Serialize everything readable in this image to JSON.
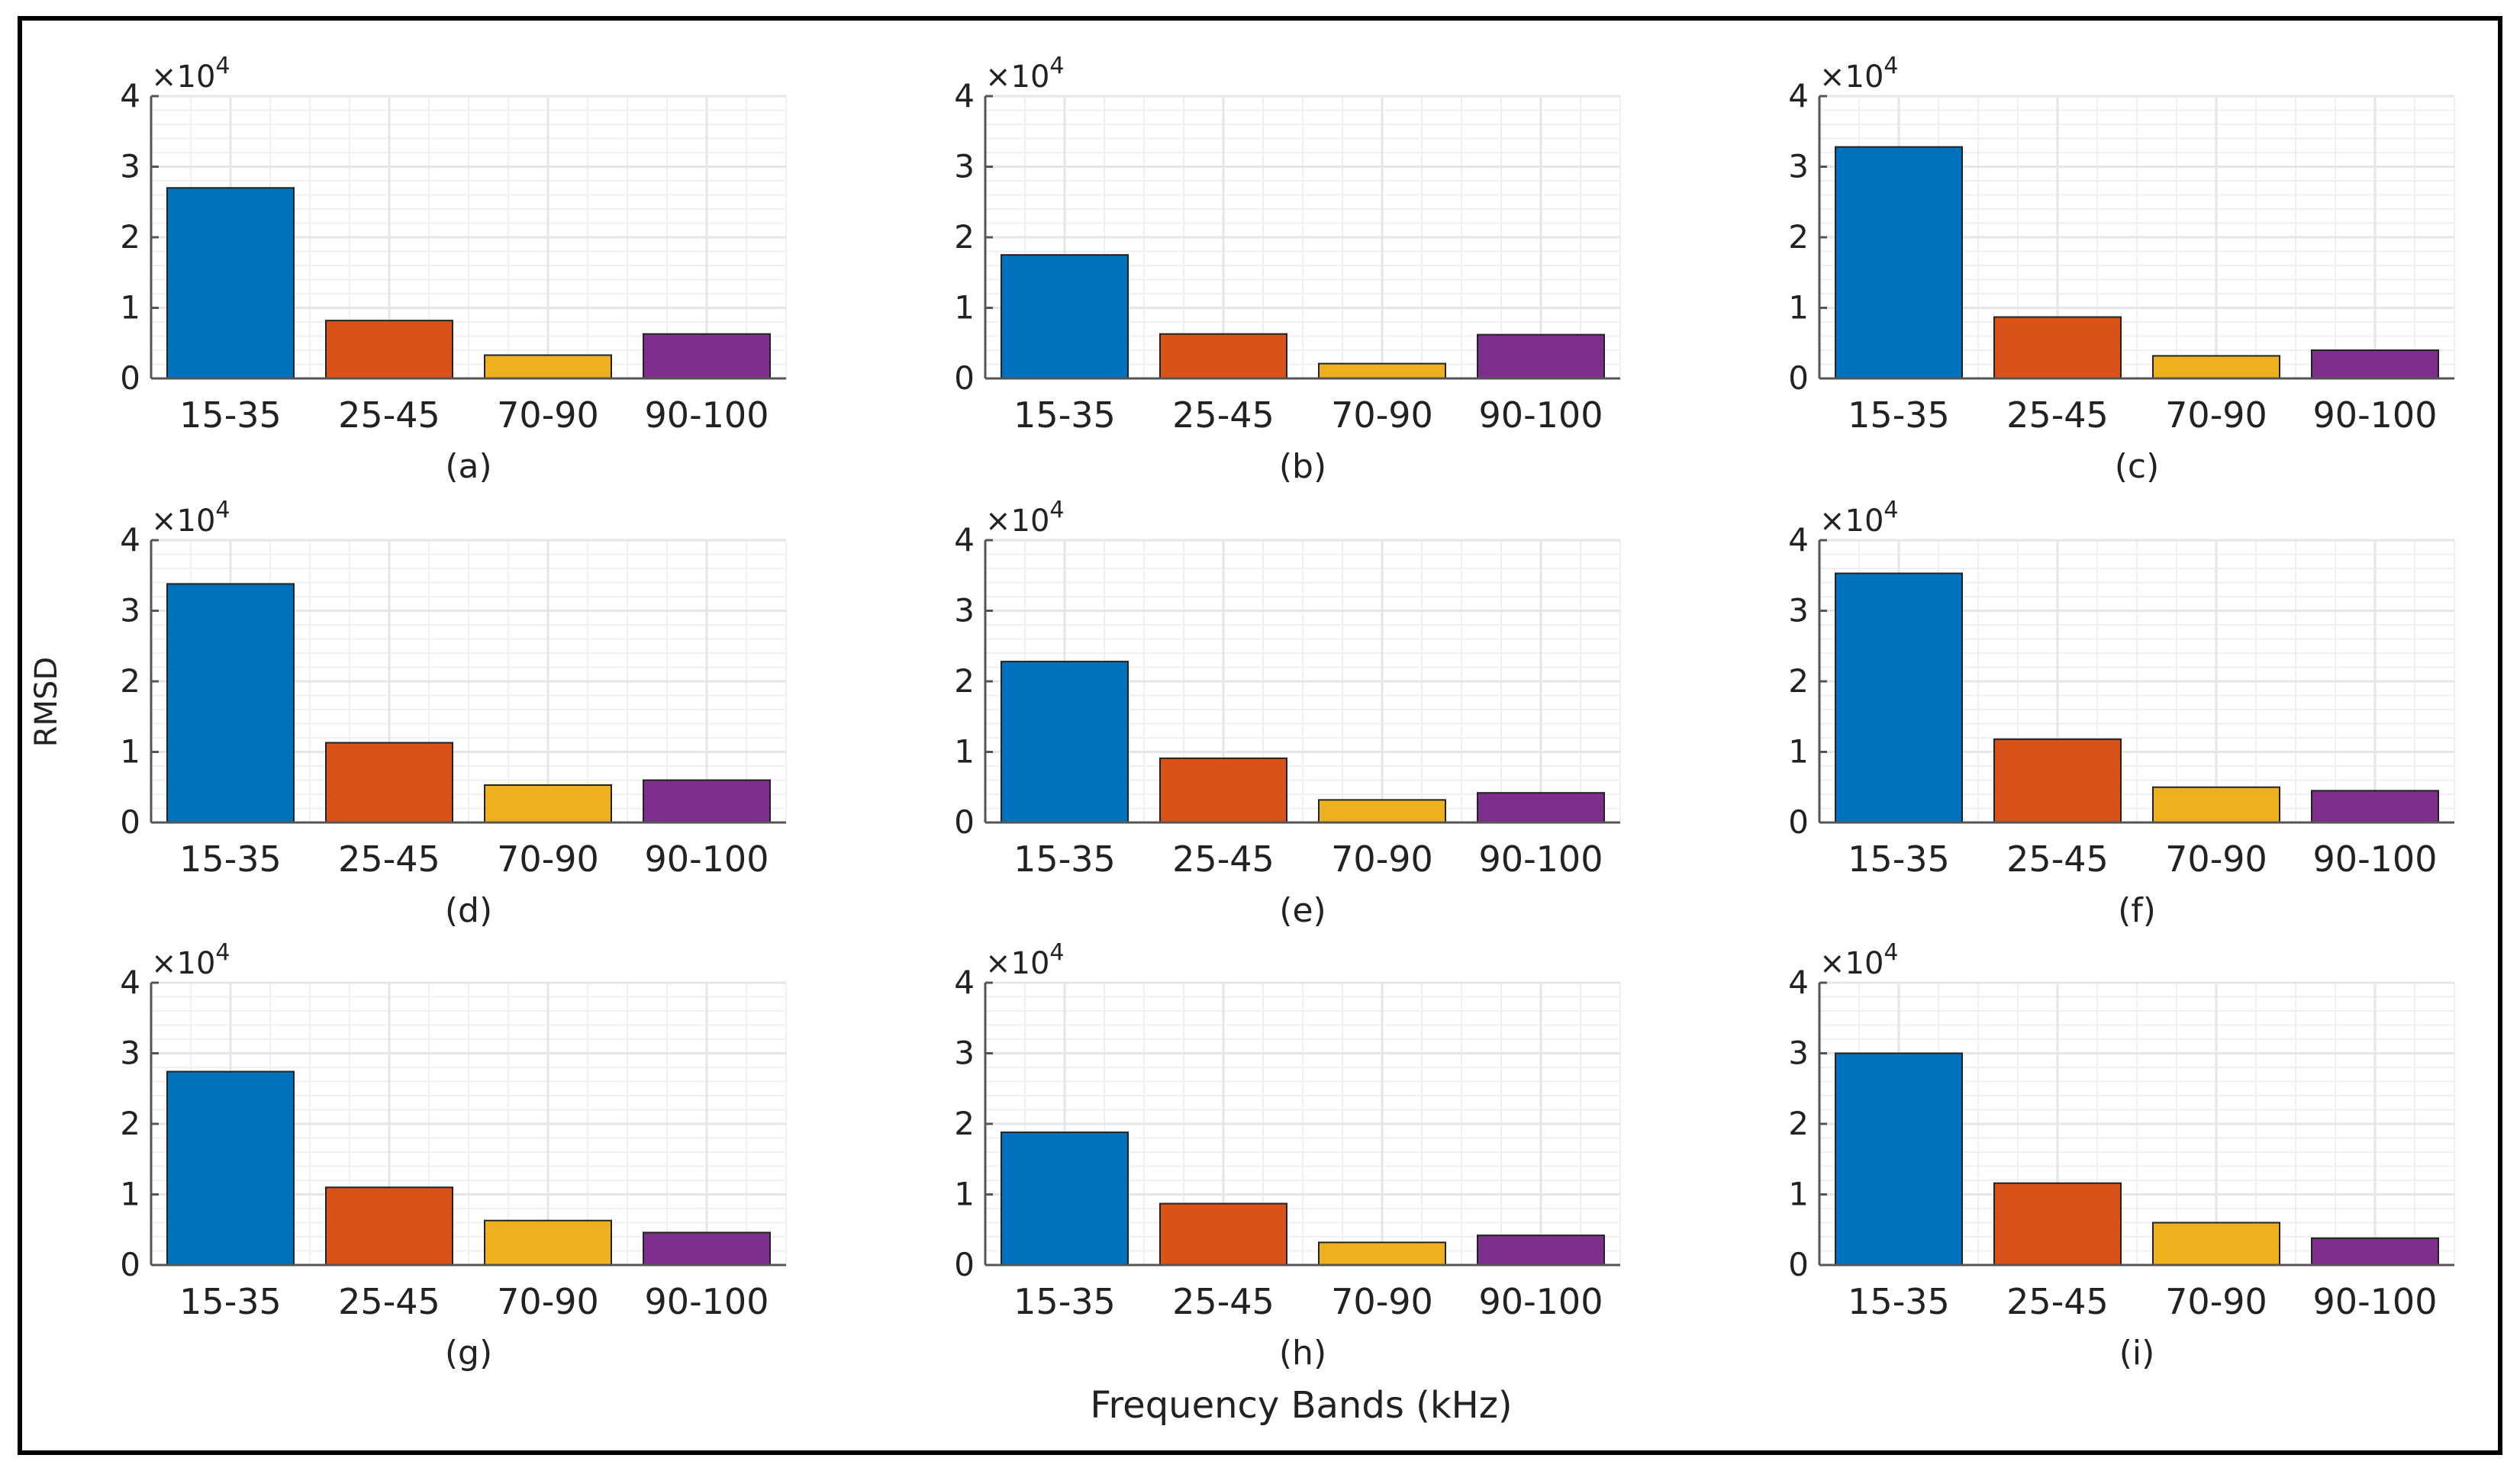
{
  "figure": {
    "ylabel": "RMSD",
    "xlabel": "Frequency Bands (kHz)",
    "exponent_base": "×10",
    "exponent_power": "4"
  },
  "colors": {
    "bars": [
      "#0072BD",
      "#D95319",
      "#EDB120",
      "#7E2F8E"
    ],
    "grid": "#e6e6e6",
    "axis": "#555555",
    "frame": "#000000"
  },
  "chart_data": [
    {
      "type": "bar",
      "panel": "(a)",
      "categories": [
        "15-35",
        "25-45",
        "70-90",
        "90-100"
      ],
      "values": [
        27000,
        8200,
        3300,
        6300
      ],
      "ylim": [
        0,
        40000
      ],
      "yticks": [
        0,
        1,
        2,
        3,
        4
      ],
      "y_scale_label": "×10^4"
    },
    {
      "type": "bar",
      "panel": "(b)",
      "categories": [
        "15-35",
        "25-45",
        "70-90",
        "90-100"
      ],
      "values": [
        17500,
        6300,
        2100,
        6200
      ],
      "ylim": [
        0,
        40000
      ],
      "yticks": [
        0,
        1,
        2,
        3,
        4
      ],
      "y_scale_label": "×10^4"
    },
    {
      "type": "bar",
      "panel": "(c)",
      "categories": [
        "15-35",
        "25-45",
        "70-90",
        "90-100"
      ],
      "values": [
        32800,
        8700,
        3200,
        4000
      ],
      "ylim": [
        0,
        40000
      ],
      "yticks": [
        0,
        1,
        2,
        3,
        4
      ],
      "y_scale_label": "×10^4"
    },
    {
      "type": "bar",
      "panel": "(d)",
      "categories": [
        "15-35",
        "25-45",
        "70-90",
        "90-100"
      ],
      "values": [
        33800,
        11300,
        5300,
        6000
      ],
      "ylim": [
        0,
        40000
      ],
      "yticks": [
        0,
        1,
        2,
        3,
        4
      ],
      "y_scale_label": "×10^4"
    },
    {
      "type": "bar",
      "panel": "(e)",
      "categories": [
        "15-35",
        "25-45",
        "70-90",
        "90-100"
      ],
      "values": [
        22800,
        9100,
        3200,
        4200
      ],
      "ylim": [
        0,
        40000
      ],
      "yticks": [
        0,
        1,
        2,
        3,
        4
      ],
      "y_scale_label": "×10^4"
    },
    {
      "type": "bar",
      "panel": "(f)",
      "categories": [
        "15-35",
        "25-45",
        "70-90",
        "90-100"
      ],
      "values": [
        35300,
        11800,
        5000,
        4500
      ],
      "ylim": [
        0,
        40000
      ],
      "yticks": [
        0,
        1,
        2,
        3,
        4
      ],
      "y_scale_label": "×10^4"
    },
    {
      "type": "bar",
      "panel": "(g)",
      "categories": [
        "15-35",
        "25-45",
        "70-90",
        "90-100"
      ],
      "values": [
        27400,
        11000,
        6300,
        4600
      ],
      "ylim": [
        0,
        40000
      ],
      "yticks": [
        0,
        1,
        2,
        3,
        4
      ],
      "y_scale_label": "×10^4"
    },
    {
      "type": "bar",
      "panel": "(h)",
      "categories": [
        "15-35",
        "25-45",
        "70-90",
        "90-100"
      ],
      "values": [
        18800,
        8700,
        3200,
        4200
      ],
      "ylim": [
        0,
        40000
      ],
      "yticks": [
        0,
        1,
        2,
        3,
        4
      ],
      "y_scale_label": "×10^4"
    },
    {
      "type": "bar",
      "panel": "(i)",
      "categories": [
        "15-35",
        "25-45",
        "70-90",
        "90-100"
      ],
      "values": [
        30000,
        11600,
        6000,
        3800
      ],
      "ylim": [
        0,
        40000
      ],
      "yticks": [
        0,
        1,
        2,
        3,
        4
      ],
      "y_scale_label": "×10^4"
    }
  ]
}
